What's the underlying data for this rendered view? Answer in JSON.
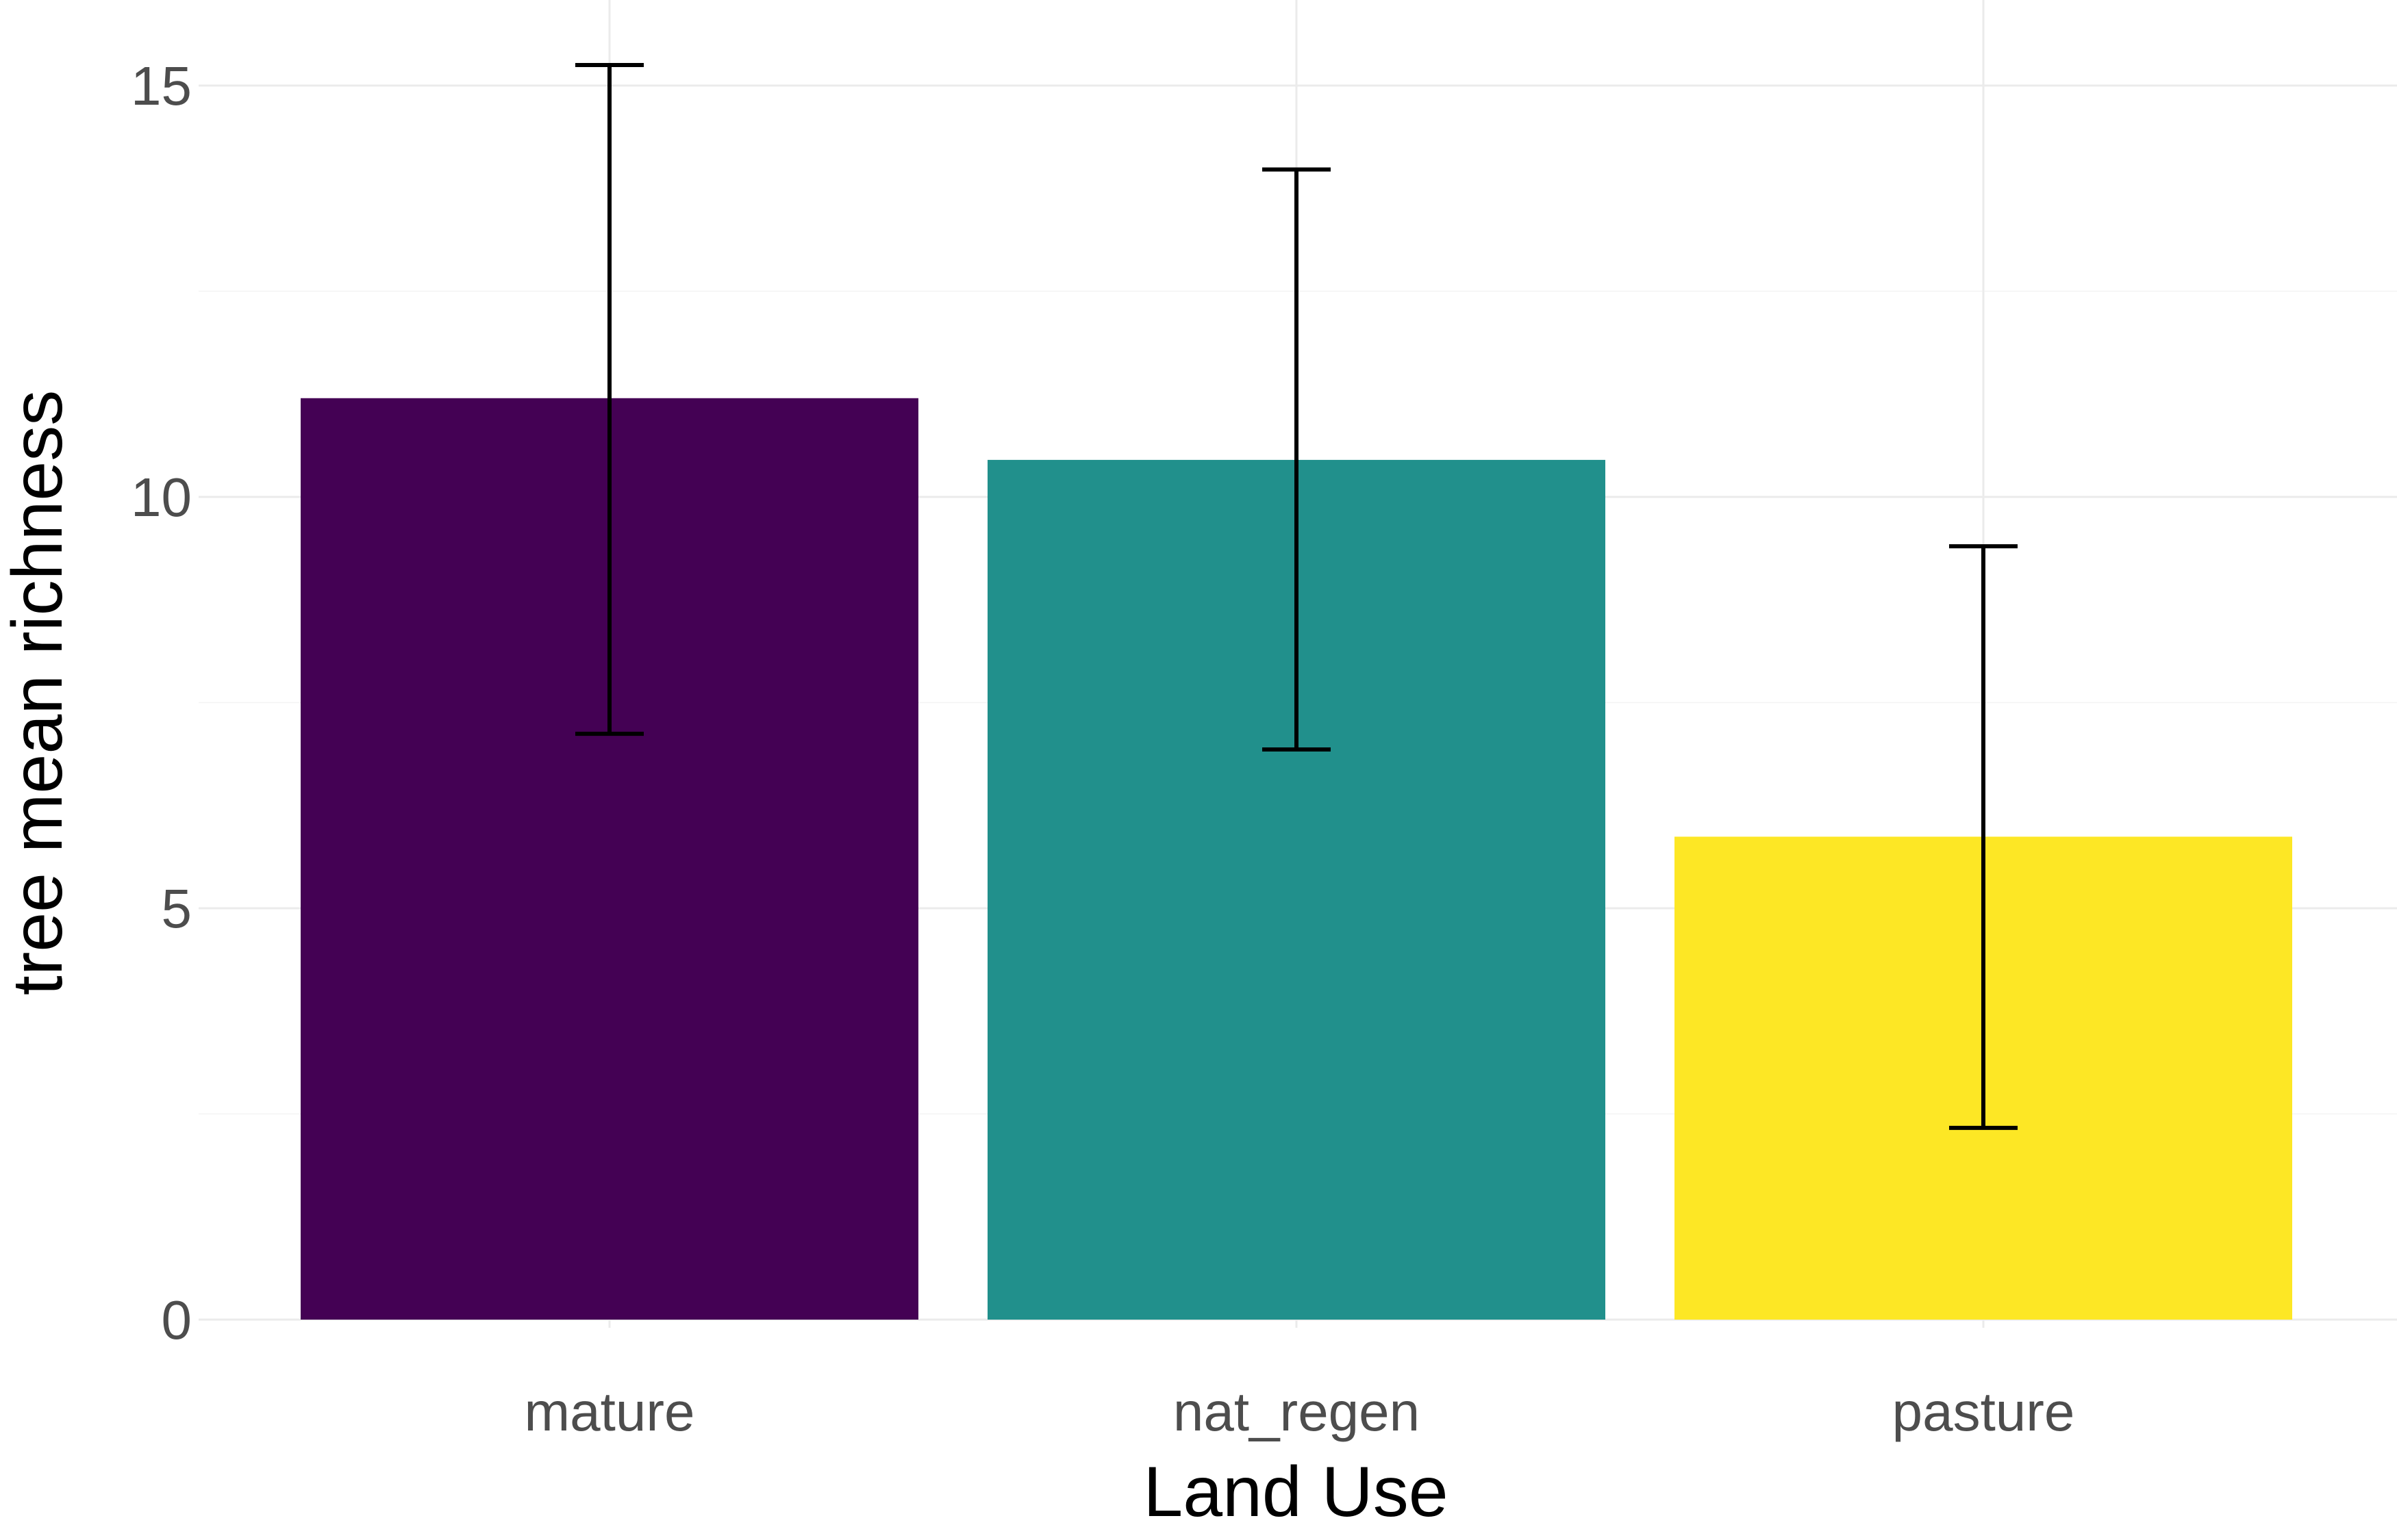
{
  "chart_data": {
    "type": "bar",
    "categories": [
      "mature",
      "nat_regen",
      "pasture"
    ],
    "values": [
      11.2,
      10.45,
      5.87
    ],
    "error_low": [
      7.12,
      6.93,
      2.33
    ],
    "error_high": [
      15.25,
      13.98,
      9.4
    ],
    "colors": [
      "#440154",
      "#21908C",
      "#FDE725"
    ],
    "xlabel": "Land Use",
    "ylabel": "tree mean richness",
    "ylim": [
      0,
      15.5
    ],
    "yticks": [
      0,
      5,
      10,
      15
    ],
    "grid": true,
    "legend": "none"
  }
}
